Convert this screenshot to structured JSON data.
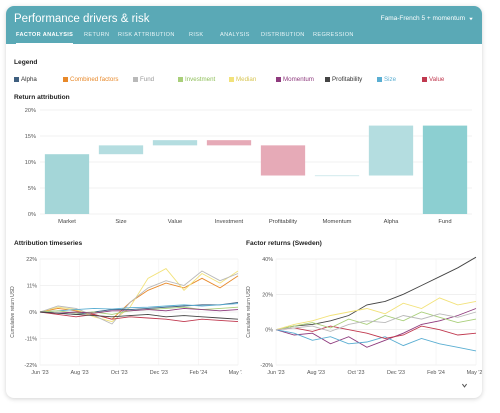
{
  "header": {
    "title": "Performance drivers & risk",
    "model_select": "Fama-French 5 + momentum",
    "model_select_icon": "chevron-down-icon"
  },
  "tabs": [
    {
      "label": "FACTOR ANALYSIS",
      "active": true
    },
    {
      "label": "RETURN",
      "active": false
    },
    {
      "label": "RISK ATTRIBUTION",
      "active": false
    },
    {
      "label": "RISK",
      "active": false
    },
    {
      "label": "ANALYSIS",
      "active": false
    },
    {
      "label": "DISTRIBUTION",
      "active": false
    },
    {
      "label": "REGRESSION",
      "active": false
    }
  ],
  "legend": {
    "title": "Legend",
    "items": [
      {
        "label": "Alpha",
        "color": "#3f5f7f"
      },
      {
        "label": "Combined factors",
        "color": "#e8892a"
      },
      {
        "label": "Fund",
        "color": "#b9b9b9"
      },
      {
        "label": "Investment",
        "color": "#a9cf7a"
      },
      {
        "label": "Median",
        "color": "#f2e27a"
      },
      {
        "label": "Momentum",
        "color": "#8e3a7d"
      },
      {
        "label": "Profitability",
        "color": "#444444"
      },
      {
        "label": "Size",
        "color": "#5aaed2"
      },
      {
        "label": "Value",
        "color": "#c0394f"
      }
    ]
  },
  "sections": {
    "return_attribution": "Return attribution",
    "attribution_timeseries": "Attribution timeseries",
    "factor_returns": "Factor returns (Sweden)"
  },
  "footer": {
    "expand_icon": "chevron-down-icon"
  },
  "chart_data": [
    {
      "type": "bar",
      "subtype": "waterfall",
      "title": "Return attribution",
      "categories": [
        "Market",
        "Size",
        "Value",
        "Investment",
        "Profitability",
        "Momentum",
        "Alpha",
        "Fund"
      ],
      "ranges": [
        [
          0,
          11.5
        ],
        [
          11.5,
          13.2
        ],
        [
          13.2,
          14.2
        ],
        [
          14.2,
          13.2
        ],
        [
          13.2,
          7.4
        ],
        [
          7.4,
          7.4
        ],
        [
          7.4,
          17.0
        ],
        [
          0,
          17.0
        ]
      ],
      "colors": [
        "#a4d6d8",
        "#b4dde0",
        "#b4dde0",
        "#e6aab7",
        "#e6aab7",
        "#b4dde0",
        "#b4dde0",
        "#8ccfd1"
      ],
      "ylim": [
        0,
        20
      ],
      "yticks": [
        "0%",
        "5%",
        "10%",
        "15%",
        "20%"
      ],
      "grid": true
    },
    {
      "type": "line",
      "title": "Attribution timeseries",
      "ylabel": "Cumulative return USD",
      "ylim": [
        -22,
        22
      ],
      "yticks": [
        "-22%",
        "-11%",
        "0%",
        "11%",
        "22%"
      ],
      "xticks": [
        "Jun '23",
        "Aug '23",
        "Oct '23",
        "Dec '23",
        "Feb '24",
        "May '24"
      ],
      "x": [
        0,
        1,
        2,
        3,
        4,
        5,
        6,
        7,
        8,
        9,
        10,
        11
      ],
      "series": [
        {
          "color": "#e8892a",
          "values": [
            0,
            1.5,
            0.5,
            -1,
            -3,
            4,
            9,
            12,
            10,
            14,
            10,
            15
          ]
        },
        {
          "color": "#f2e27a",
          "values": [
            0,
            2,
            1,
            -2,
            -4,
            2,
            14,
            18,
            9,
            16,
            12,
            17
          ]
        },
        {
          "color": "#b9b9b9",
          "values": [
            0,
            2.5,
            1.5,
            -1.5,
            -5,
            4,
            10,
            13,
            11,
            17,
            13,
            16
          ]
        },
        {
          "color": "#3f5f7f",
          "values": [
            0,
            -0.5,
            -1,
            0,
            1,
            1,
            1.5,
            2,
            2.5,
            3,
            3,
            4
          ]
        },
        {
          "color": "#5aaed2",
          "values": [
            0,
            0.5,
            1,
            1.5,
            1.2,
            1.8,
            2,
            2.5,
            3,
            2.5,
            3,
            3.5
          ]
        },
        {
          "color": "#c0394f",
          "values": [
            0,
            -1,
            -2,
            -1,
            -3,
            -2,
            -2.5,
            -3,
            -4,
            -3,
            -3.5,
            -4
          ]
        },
        {
          "color": "#a9cf7a",
          "values": [
            0,
            0.5,
            -0.5,
            0,
            -1,
            0.5,
            1,
            1.5,
            2,
            1,
            1.5,
            2
          ]
        },
        {
          "color": "#8e3a7d",
          "values": [
            0,
            -0.5,
            0,
            -0.5,
            0.5,
            0.5,
            1,
            0.5,
            1.5,
            1,
            0.5,
            1
          ]
        },
        {
          "color": "#444444",
          "values": [
            0,
            -0.5,
            -1,
            -1.5,
            -2,
            -1.5,
            -1,
            -2,
            -1.5,
            -2,
            -2.5,
            -3
          ]
        }
      ]
    },
    {
      "type": "line",
      "title": "Factor returns (Sweden)",
      "ylabel": "Cumulative return USD",
      "ylim": [
        -20,
        40
      ],
      "yticks": [
        "-20%",
        "0%",
        "20%",
        "40%"
      ],
      "xticks": [
        "Jun '23",
        "Aug '23",
        "Oct '23",
        "Dec '23",
        "Feb '24",
        "May '24"
      ],
      "x": [
        0,
        1,
        2,
        3,
        4,
        5,
        6,
        7,
        8,
        9,
        10,
        11
      ],
      "series": [
        {
          "color": "#444444",
          "values": [
            0,
            2,
            3,
            5,
            8,
            14,
            16,
            20,
            25,
            30,
            35,
            41
          ]
        },
        {
          "color": "#8e3a7d",
          "values": [
            0,
            -3,
            -2,
            -8,
            -4,
            -10,
            -6,
            -2,
            3,
            5,
            8,
            12
          ]
        },
        {
          "color": "#5aaed2",
          "values": [
            0,
            -2,
            -6,
            -4,
            -8,
            -7,
            -4,
            -9,
            -5,
            -8,
            -10,
            -12
          ]
        },
        {
          "color": "#c0394f",
          "values": [
            0,
            1,
            -1,
            2,
            0,
            -2,
            -5,
            -3,
            2,
            0,
            -3,
            -2
          ]
        },
        {
          "color": "#a9cf7a",
          "values": [
            0,
            2,
            4,
            1,
            6,
            3,
            8,
            5,
            10,
            7,
            4,
            6
          ]
        },
        {
          "color": "#f2e27a",
          "values": [
            0,
            3,
            5,
            8,
            10,
            12,
            9,
            15,
            12,
            18,
            14,
            16
          ]
        },
        {
          "color": "#b9b9b9",
          "values": [
            0,
            1,
            2,
            -1,
            3,
            5,
            4,
            8,
            6,
            9,
            7,
            10
          ]
        }
      ]
    }
  ]
}
